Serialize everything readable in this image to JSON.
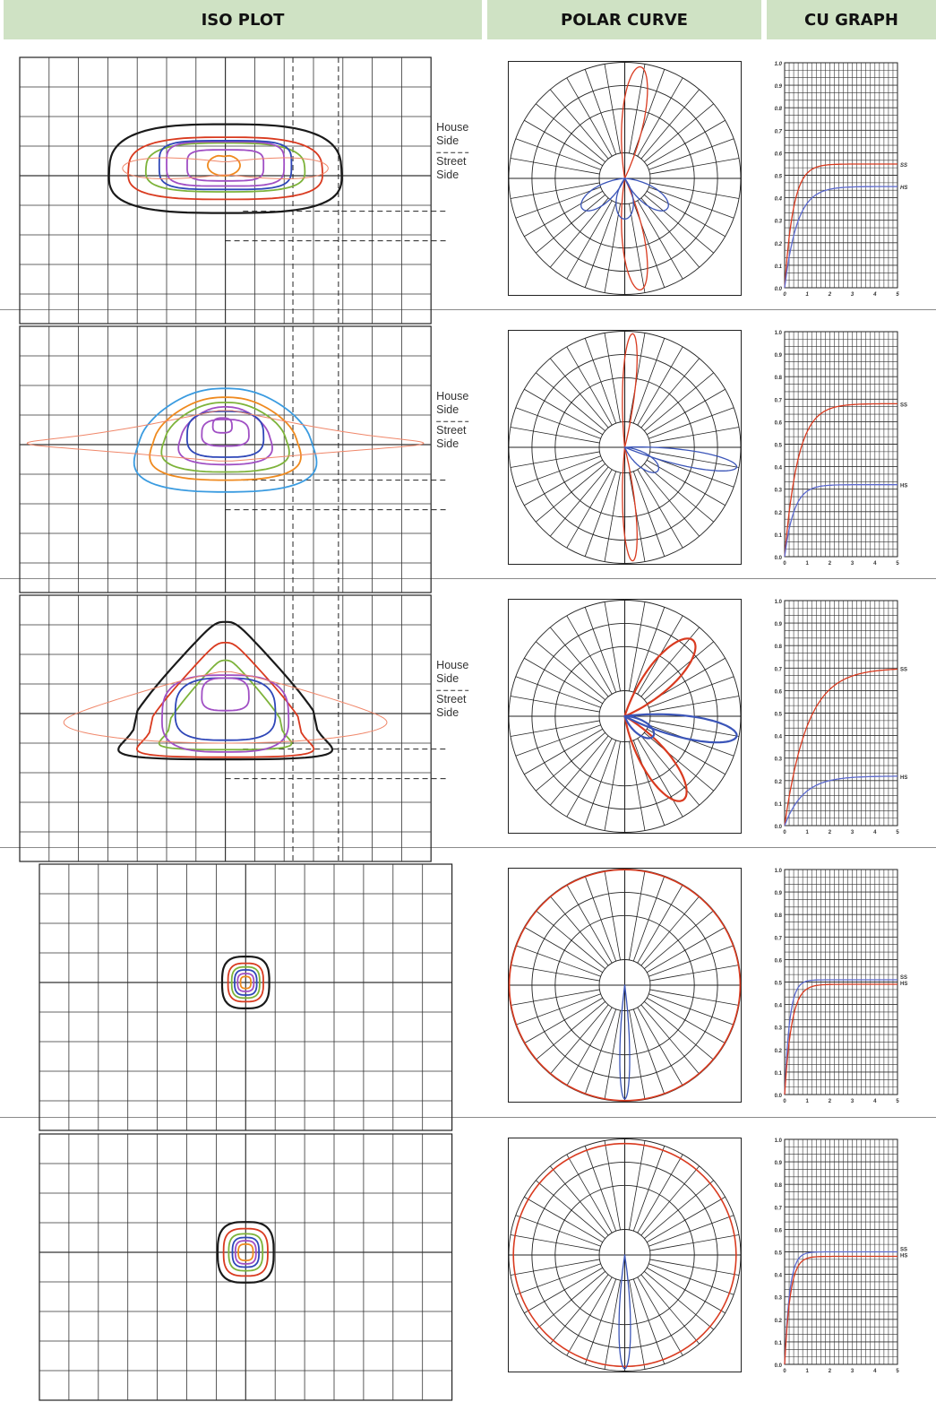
{
  "headers": {
    "iso": "ISO PLOT",
    "polar": "POLAR CURVE",
    "cu": "CU GRAPH"
  },
  "iso_labels": {
    "house": [
      "House",
      "Side"
    ],
    "street": [
      "Street",
      "Side"
    ]
  },
  "colors": {
    "black": "#1a1a1a",
    "red": "#d93a1f",
    "green": "#7db33a",
    "purple": "#a04fc4",
    "blue": "#2f47b8",
    "orange": "#ef8a1f",
    "salmon": "#f0876a",
    "cyan": "#3a9be0",
    "polar_red": "#d93a1f",
    "polar_blue": "#3b55b8",
    "cu_red": "#d93a1f",
    "cu_blue": "#5c6ad0",
    "header_bg": "#cfe2c4"
  },
  "rows": [
    {
      "iso": {
        "layout": "street",
        "contours": [
          {
            "color": "black",
            "cx": 0,
            "cy": 0.06,
            "w": 7.9,
            "h": 3.0,
            "shape": "egg"
          },
          {
            "color": "red",
            "cx": 0,
            "cy": 0.05,
            "w": 6.6,
            "h": 2.1,
            "shape": "egg"
          },
          {
            "color": "green",
            "cx": 0,
            "cy": 0.02,
            "w": 5.4,
            "h": 1.65,
            "shape": "egg"
          },
          {
            "color": "purple",
            "cx": 0,
            "cy": -0.1,
            "w": 4.0,
            "h": 1.5,
            "shape": "box"
          },
          {
            "color": "blue",
            "cx": 0,
            "cy": -0.06,
            "w": 4.5,
            "h": 1.65,
            "shape": "box"
          },
          {
            "color": "purple",
            "cx": 0,
            "cy": -0.05,
            "w": 2.6,
            "h": 1.05,
            "shape": "box"
          },
          {
            "color": "orange",
            "cx": -0.05,
            "cy": -0.05,
            "w": 1.1,
            "h": 0.7,
            "shape": "dent"
          },
          {
            "color": "salmon",
            "cx": 0,
            "cy": 0.05,
            "w": 7.0,
            "h": 1.2,
            "shape": "thin"
          }
        ]
      },
      "polar": {
        "curves": [
          {
            "color": "polar_red",
            "width": 1.3,
            "type": "lobe",
            "angle": 8,
            "len": 0.97,
            "half": 0.14
          },
          {
            "color": "polar_red",
            "width": 1.3,
            "type": "lobe",
            "angle": 172,
            "len": 0.97,
            "half": 0.14
          },
          {
            "color": "polar_blue",
            "width": 1.3,
            "type": "lobe",
            "angle": 125,
            "len": 0.45,
            "half": 0.25
          },
          {
            "color": "polar_blue",
            "width": 1.3,
            "type": "lobe",
            "angle": 235,
            "len": 0.45,
            "half": 0.25
          },
          {
            "color": "polar_blue",
            "width": 1.3,
            "type": "lobe",
            "angle": 180,
            "len": 0.35,
            "half": 0.3
          }
        ]
      },
      "cu": {
        "style": "italic",
        "labels": [
          "1.0",
          "0.9",
          "0.8",
          "0.7",
          "0.6",
          "0.5",
          "0.4",
          "0.3",
          "0.2",
          "0.1",
          "0.0"
        ],
        "xlabels": [
          "0",
          "1",
          "2",
          "3",
          "4",
          "5"
        ],
        "series": [
          {
            "name": "SS",
            "color": "cu_red",
            "plateau": 0.55,
            "k": 2.6
          },
          {
            "name": "HS",
            "color": "cu_blue",
            "plateau": 0.45,
            "k": 1.8
          }
        ]
      }
    },
    {
      "iso": {
        "layout": "street",
        "contours": [
          {
            "color": "cyan",
            "cx": 0,
            "cy": 0.15,
            "w": 7.0,
            "h": 3.5,
            "shape": "tri"
          },
          {
            "color": "orange",
            "cx": 0,
            "cy": 0.1,
            "w": 5.8,
            "h": 2.8,
            "shape": "tri"
          },
          {
            "color": "green",
            "cx": 0,
            "cy": 0.05,
            "w": 4.9,
            "h": 2.35,
            "shape": "tri"
          },
          {
            "color": "purple",
            "cx": 0,
            "cy": 0.0,
            "w": 3.6,
            "h": 1.95,
            "shape": "tri"
          },
          {
            "color": "blue",
            "cx": 0,
            "cy": -0.05,
            "w": 2.6,
            "h": 1.55,
            "shape": "egg"
          },
          {
            "color": "purple",
            "cx": 0,
            "cy": -0.1,
            "w": 1.6,
            "h": 0.9,
            "shape": "egg"
          },
          {
            "color": "purple",
            "cx": -0.1,
            "cy": -0.35,
            "w": 0.65,
            "h": 0.5,
            "shape": "egg"
          },
          {
            "color": "salmon",
            "cx": 0,
            "cy": 0.25,
            "w": 13.5,
            "h": 2.0,
            "shape": "flare"
          }
        ]
      },
      "polar": {
        "curves": [
          {
            "color": "polar_red",
            "width": 1.3,
            "type": "lobe",
            "angle": 4,
            "len": 0.98,
            "half": 0.08
          },
          {
            "color": "polar_red",
            "width": 1.3,
            "type": "lobe",
            "angle": 176,
            "len": 0.98,
            "half": 0.08
          },
          {
            "color": "polar_blue",
            "width": 1.3,
            "type": "lobe",
            "angle": 100,
            "len": 0.98,
            "half": 0.1
          },
          {
            "color": "polar_blue",
            "width": 1.3,
            "type": "lobe",
            "angle": 125,
            "len": 0.35,
            "half": 0.25
          }
        ]
      },
      "cu": {
        "style": "normal",
        "labels": [
          "1.0",
          "0.9",
          "0.8",
          "0.7",
          "0.6",
          "0.5",
          "0.4",
          "0.3",
          "0.2",
          "0.1",
          "0.0"
        ],
        "xlabels": [
          "0",
          "1",
          "2",
          "3",
          "4",
          "5"
        ],
        "series": [
          {
            "name": "SS",
            "color": "cu_red",
            "plateau": 0.68,
            "k": 1.7
          },
          {
            "name": "HS",
            "color": "cu_blue",
            "plateau": 0.32,
            "k": 2.4
          }
        ]
      }
    },
    {
      "iso": {
        "layout": "street",
        "contours": [
          {
            "color": "black",
            "cx": 0,
            "cy": 0.2,
            "w": 9.2,
            "h": 6.0,
            "shape": "arch"
          },
          {
            "color": "red",
            "cx": 0,
            "cy": 0.4,
            "w": 7.6,
            "h": 5.0,
            "shape": "arch"
          },
          {
            "color": "green",
            "cx": 0,
            "cy": 0.45,
            "w": 5.7,
            "h": 3.9,
            "shape": "arch"
          },
          {
            "color": "purple",
            "cx": 0,
            "cy": 0.3,
            "w": 4.3,
            "h": 2.6,
            "shape": "egg"
          },
          {
            "color": "blue",
            "cx": 0,
            "cy": 0.15,
            "w": 3.4,
            "h": 2.1,
            "shape": "egg"
          },
          {
            "color": "purple",
            "cx": 0,
            "cy": -0.35,
            "w": 1.6,
            "h": 1.1,
            "shape": "egg"
          },
          {
            "color": "salmon",
            "cx": 0,
            "cy": 0.6,
            "w": 11.0,
            "h": 3.5,
            "shape": "wings"
          }
        ]
      },
      "polar": {
        "curves": [
          {
            "color": "polar_red",
            "width": 2.2,
            "type": "lobe",
            "angle": 42,
            "len": 0.88,
            "half": 0.2
          },
          {
            "color": "polar_red",
            "width": 2.2,
            "type": "lobe",
            "angle": 145,
            "len": 0.88,
            "half": 0.2
          },
          {
            "color": "polar_blue",
            "width": 2.2,
            "type": "lobe",
            "angle": 100,
            "len": 0.98,
            "half": 0.14
          },
          {
            "color": "polar_blue",
            "width": 2.2,
            "type": "lobe",
            "angle": 125,
            "len": 0.3,
            "half": 0.28
          }
        ]
      },
      "cu": {
        "style": "normal",
        "labels": [
          "1.0",
          "0.9",
          "0.8",
          "0.7",
          "0.6",
          "0.5",
          "0.4",
          "0.3",
          "0.2",
          "0.1",
          "0.0"
        ],
        "xlabels": [
          "0",
          "1",
          "2",
          "3",
          "4",
          "5"
        ],
        "series": [
          {
            "name": "SS",
            "color": "cu_red",
            "plateau": 0.7,
            "k": 1.0
          },
          {
            "name": "HS",
            "color": "cu_blue",
            "plateau": 0.22,
            "k": 1.2
          }
        ]
      }
    },
    {
      "iso": {
        "layout": "center",
        "contours": [
          {
            "color": "black",
            "cx": 0,
            "cy": 0,
            "w": 1.6,
            "h": 1.75,
            "shape": "oct"
          },
          {
            "color": "red",
            "cx": 0,
            "cy": 0,
            "w": 1.2,
            "h": 1.3,
            "shape": "oct"
          },
          {
            "color": "green",
            "cx": 0,
            "cy": 0,
            "w": 0.95,
            "h": 1.05,
            "shape": "oct"
          },
          {
            "color": "blue",
            "cx": 0,
            "cy": 0,
            "w": 0.75,
            "h": 0.85,
            "shape": "oct"
          },
          {
            "color": "purple",
            "cx": 0,
            "cy": 0,
            "w": 0.55,
            "h": 0.6,
            "shape": "oct"
          },
          {
            "color": "orange",
            "cx": 0,
            "cy": 0,
            "w": 0.35,
            "h": 0.4,
            "shape": "oct"
          }
        ]
      },
      "polar": {
        "curves": [
          {
            "color": "polar_red",
            "width": 1.6,
            "type": "circle",
            "r": 0.995
          },
          {
            "color": "polar_blue",
            "width": 1.3,
            "type": "lobe",
            "angle": 180,
            "len": 0.98,
            "half": 0.06
          }
        ]
      },
      "cu": {
        "style": "normal",
        "labels": [
          "1.0",
          "0.9",
          "0.8",
          "0.7",
          "0.6",
          "0.5",
          "0.4",
          "0.3",
          "0.2",
          "0.1",
          "0.0"
        ],
        "xlabels": [
          "0",
          "1",
          "2",
          "3",
          "4",
          "5"
        ],
        "series": [
          {
            "name": "SS",
            "color": "cu_blue",
            "plateau": 0.51,
            "k": 4.5
          },
          {
            "name": "HS",
            "color": "cu_red",
            "plateau": 0.49,
            "k": 3.2
          }
        ]
      }
    },
    {
      "iso": {
        "layout": "center",
        "contours": [
          {
            "color": "black",
            "cx": 0,
            "cy": 0,
            "w": 1.9,
            "h": 2.05,
            "shape": "oct"
          },
          {
            "color": "red",
            "cx": 0,
            "cy": 0,
            "w": 1.5,
            "h": 1.6,
            "shape": "oct"
          },
          {
            "color": "green",
            "cx": 0,
            "cy": 0,
            "w": 1.15,
            "h": 1.25,
            "shape": "oct"
          },
          {
            "color": "blue",
            "cx": 0,
            "cy": 0,
            "w": 0.9,
            "h": 1.0,
            "shape": "oct"
          },
          {
            "color": "purple",
            "cx": 0,
            "cy": 0,
            "w": 0.7,
            "h": 0.78,
            "shape": "oct"
          },
          {
            "color": "orange",
            "cx": 0,
            "cy": 0,
            "w": 0.5,
            "h": 0.55,
            "shape": "oct"
          }
        ]
      },
      "polar": {
        "curves": [
          {
            "color": "polar_red",
            "width": 1.6,
            "type": "circle",
            "r": 0.96
          },
          {
            "color": "polar_blue",
            "width": 1.3,
            "type": "lobe",
            "angle": 180,
            "len": 0.98,
            "half": 0.07
          }
        ]
      },
      "cu": {
        "style": "normal",
        "labels": [
          "1.0",
          "0.9",
          "0.8",
          "0.7",
          "0.6",
          "0.5",
          "0.4",
          "0.3",
          "0.2",
          "0.1",
          "0.0"
        ],
        "xlabels": [
          "0",
          "1",
          "2",
          "3",
          "4",
          "5"
        ],
        "series": [
          {
            "name": "SS",
            "color": "cu_blue",
            "plateau": 0.5,
            "k": 4.5
          },
          {
            "name": "HS",
            "color": "cu_red",
            "plateau": 0.48,
            "k": 4.0
          }
        ]
      }
    }
  ]
}
